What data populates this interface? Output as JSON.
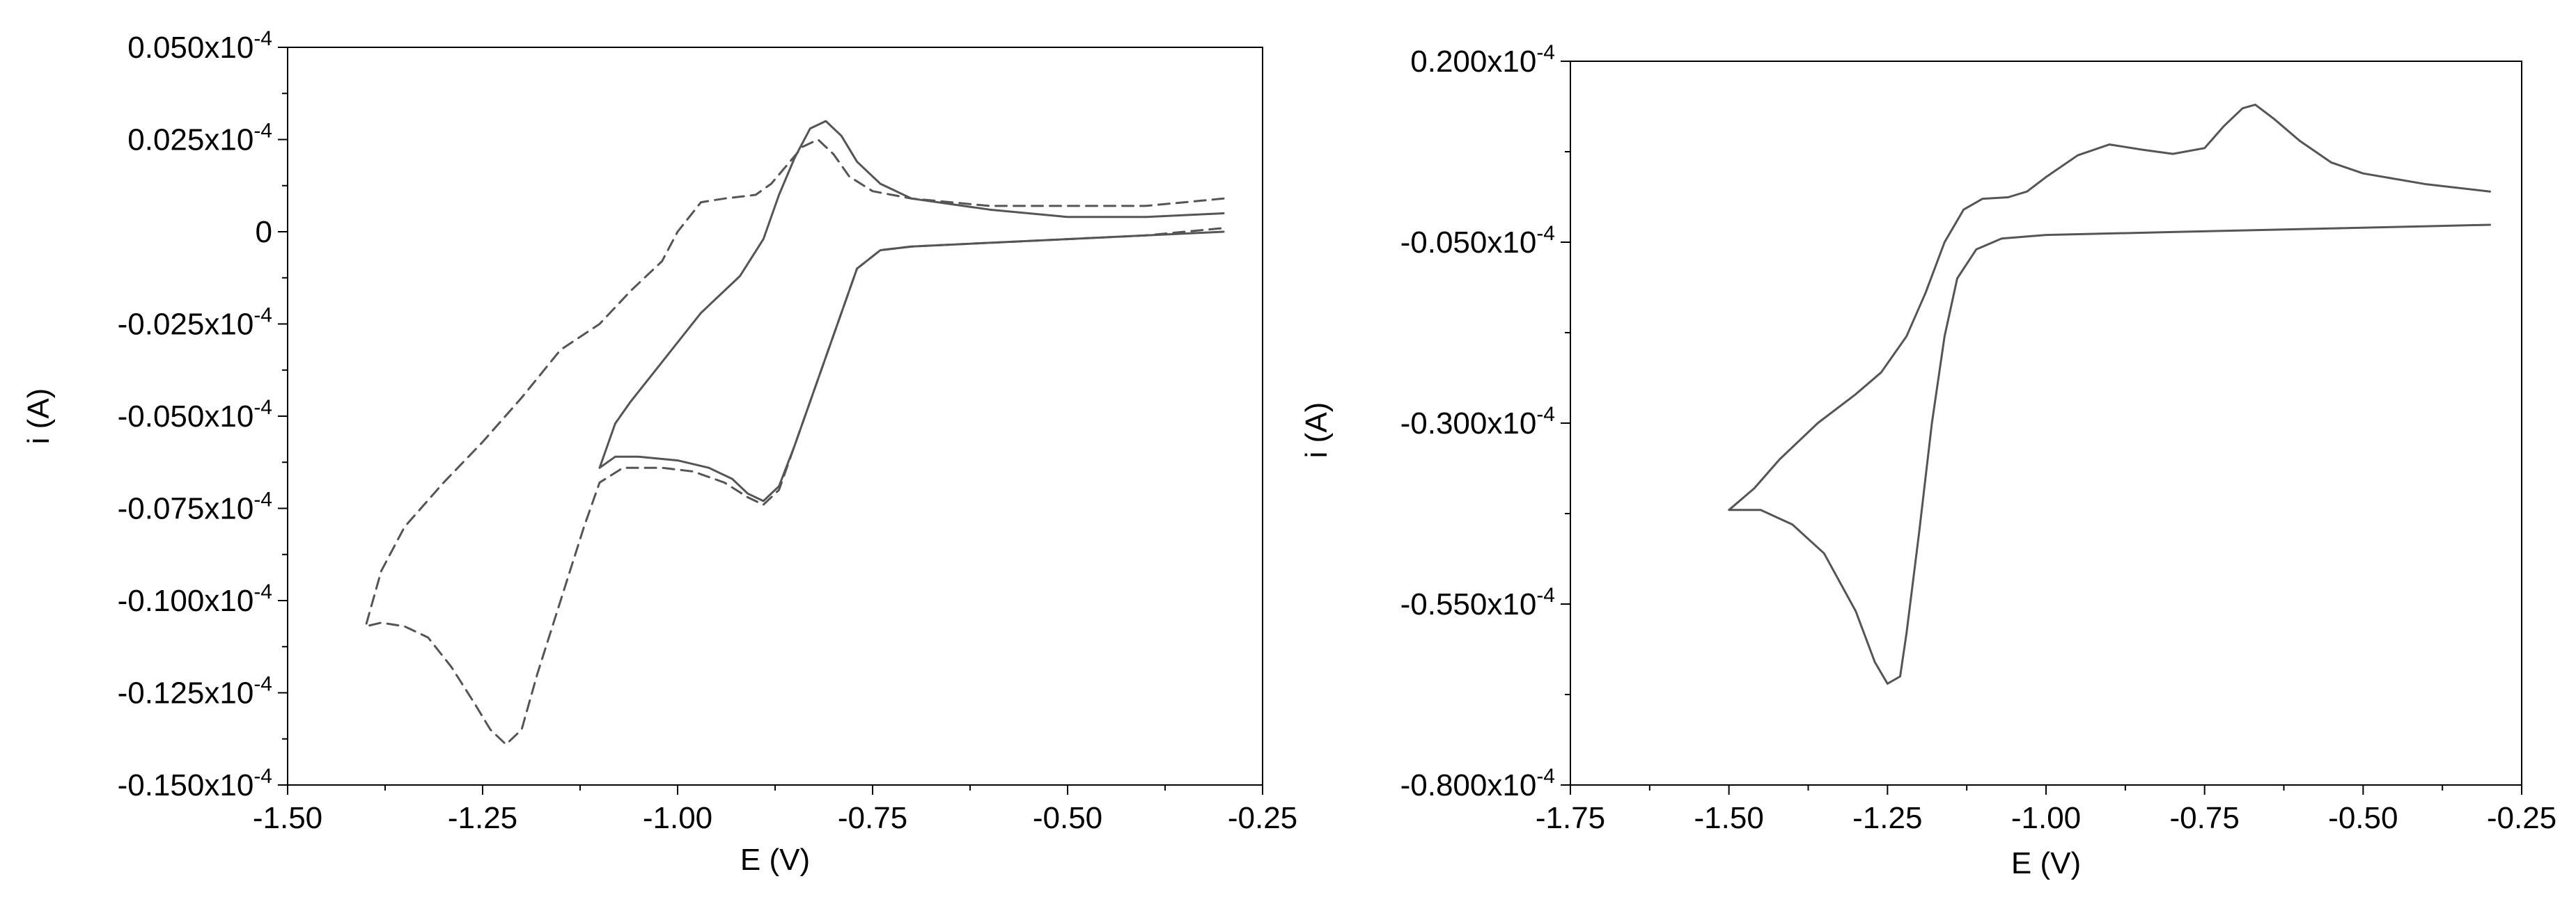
{
  "chart_data": [
    {
      "type": "line",
      "title": "",
      "xlabel": "E (V)",
      "ylabel": "i (A)",
      "xlim": [
        -1.5,
        -0.25
      ],
      "ylim": [
        -0.15,
        0.05
      ],
      "x_ticks": [
        -1.5,
        -1.25,
        -1.0,
        -0.75,
        -0.5,
        -0.25
      ],
      "x_tick_labels": [
        "-1.50",
        "-1.25",
        "-1.00",
        "-0.75",
        "-0.50",
        "-0.25"
      ],
      "y_ticks": [
        0.05,
        0.025,
        0,
        -0.025,
        -0.05,
        -0.075,
        -0.1,
        -0.125,
        -0.15
      ],
      "y_tick_labels": [
        "0.050x10",
        "0.025x10",
        "0",
        "-0.025x10",
        "-0.050x10",
        "-0.075x10",
        "-0.100x10",
        "-0.125x10",
        "-0.150x10"
      ],
      "y_tick_exponent": "-4",
      "grid": false,
      "legend": "none",
      "series": [
        {
          "style": "dashed",
          "color": "#777777",
          "points": [
            [
              -0.3,
              0.009
            ],
            [
              -0.4,
              0.007
            ],
            [
              -0.5,
              0.007
            ],
            [
              -0.6,
              0.007
            ],
            [
              -0.7,
              0.009
            ],
            [
              -0.75,
              0.011
            ],
            [
              -0.78,
              0.015
            ],
            [
              -0.8,
              0.021
            ],
            [
              -0.82,
              0.025
            ],
            [
              -0.84,
              0.023
            ],
            [
              -0.86,
              0.018
            ],
            [
              -0.88,
              0.013
            ],
            [
              -0.9,
              0.01
            ],
            [
              -0.94,
              0.009
            ],
            [
              -0.97,
              0.008
            ],
            [
              -1.0,
              0.0
            ],
            [
              -1.02,
              -0.008
            ],
            [
              -1.06,
              -0.016
            ],
            [
              -1.1,
              -0.025
            ],
            [
              -1.15,
              -0.032
            ],
            [
              -1.2,
              -0.045
            ],
            [
              -1.25,
              -0.057
            ],
            [
              -1.3,
              -0.068
            ],
            [
              -1.35,
              -0.08
            ],
            [
              -1.38,
              -0.092
            ],
            [
              -1.4,
              -0.107
            ],
            [
              -1.38,
              -0.106
            ],
            [
              -1.35,
              -0.107
            ],
            [
              -1.32,
              -0.11
            ],
            [
              -1.29,
              -0.118
            ],
            [
              -1.26,
              -0.128
            ],
            [
              -1.24,
              -0.135
            ],
            [
              -1.22,
              -0.139
            ],
            [
              -1.2,
              -0.135
            ],
            [
              -1.18,
              -0.12
            ],
            [
              -1.15,
              -0.1
            ],
            [
              -1.12,
              -0.08
            ],
            [
              -1.1,
              -0.068
            ],
            [
              -1.07,
              -0.064
            ],
            [
              -1.02,
              -0.064
            ],
            [
              -0.98,
              -0.065
            ],
            [
              -0.94,
              -0.068
            ],
            [
              -0.91,
              -0.072
            ],
            [
              -0.89,
              -0.074
            ],
            [
              -0.87,
              -0.07
            ],
            [
              -0.85,
              -0.058
            ],
            [
              -0.82,
              -0.04
            ],
            [
              -0.79,
              -0.022
            ],
            [
              -0.77,
              -0.01
            ],
            [
              -0.74,
              -0.005
            ],
            [
              -0.7,
              -0.004
            ],
            [
              -0.6,
              -0.003
            ],
            [
              -0.5,
              -0.002
            ],
            [
              -0.4,
              -0.001
            ],
            [
              -0.3,
              0.001
            ]
          ]
        },
        {
          "style": "solid",
          "color": "#555555",
          "points": [
            [
              -0.3,
              0.005
            ],
            [
              -0.4,
              0.004
            ],
            [
              -0.5,
              0.004
            ],
            [
              -0.6,
              0.006
            ],
            [
              -0.7,
              0.009
            ],
            [
              -0.74,
              0.013
            ],
            [
              -0.77,
              0.019
            ],
            [
              -0.79,
              0.026
            ],
            [
              -0.81,
              0.03
            ],
            [
              -0.83,
              0.028
            ],
            [
              -0.85,
              0.02
            ],
            [
              -0.87,
              0.01
            ],
            [
              -0.89,
              -0.002
            ],
            [
              -0.92,
              -0.012
            ],
            [
              -0.95,
              -0.018
            ],
            [
              -0.97,
              -0.022
            ],
            [
              -1.0,
              -0.03
            ],
            [
              -1.03,
              -0.038
            ],
            [
              -1.06,
              -0.046
            ],
            [
              -1.08,
              -0.052
            ],
            [
              -1.1,
              -0.064
            ],
            [
              -1.08,
              -0.061
            ],
            [
              -1.05,
              -0.061
            ],
            [
              -1.0,
              -0.062
            ],
            [
              -0.96,
              -0.064
            ],
            [
              -0.93,
              -0.067
            ],
            [
              -0.91,
              -0.071
            ],
            [
              -0.89,
              -0.073
            ],
            [
              -0.87,
              -0.069
            ],
            [
              -0.85,
              -0.058
            ],
            [
              -0.82,
              -0.04
            ],
            [
              -0.79,
              -0.022
            ],
            [
              -0.77,
              -0.01
            ],
            [
              -0.74,
              -0.005
            ],
            [
              -0.7,
              -0.004
            ],
            [
              -0.6,
              -0.003
            ],
            [
              -0.5,
              -0.002
            ],
            [
              -0.4,
              -0.001
            ],
            [
              -0.3,
              0.0
            ]
          ]
        }
      ]
    },
    {
      "type": "line",
      "title": "",
      "xlabel": "E (V)",
      "ylabel": "i (A)",
      "xlim": [
        -1.75,
        -0.25
      ],
      "ylim": [
        -0.8,
        0.2
      ],
      "x_ticks": [
        -1.75,
        -1.5,
        -1.25,
        -1.0,
        -0.75,
        -0.5,
        -0.25
      ],
      "x_tick_labels": [
        "-1.75",
        "-1.50",
        "-1.25",
        "-1.00",
        "-0.75",
        "-0.50",
        "-0.25"
      ],
      "y_ticks": [
        0.2,
        -0.05,
        -0.3,
        -0.55,
        -0.8
      ],
      "y_tick_labels": [
        "0.200x10",
        "-0.050x10",
        "-0.300x10",
        "-0.550x10",
        "-0.800x10"
      ],
      "y_tick_exponent": "-4",
      "grid": false,
      "legend": "none",
      "series": [
        {
          "style": "solid",
          "color": "#333333",
          "points": [
            [
              -0.3,
              0.02
            ],
            [
              -0.4,
              0.03
            ],
            [
              -0.5,
              0.045
            ],
            [
              -0.55,
              0.06
            ],
            [
              -0.6,
              0.09
            ],
            [
              -0.64,
              0.12
            ],
            [
              -0.67,
              0.14
            ],
            [
              -0.69,
              0.135
            ],
            [
              -0.72,
              0.11
            ],
            [
              -0.75,
              0.08
            ],
            [
              -0.8,
              0.072
            ],
            [
              -0.85,
              0.078
            ],
            [
              -0.9,
              0.085
            ],
            [
              -0.95,
              0.07
            ],
            [
              -1.0,
              0.04
            ],
            [
              -1.03,
              0.02
            ],
            [
              -1.06,
              0.012
            ],
            [
              -1.1,
              0.01
            ],
            [
              -1.13,
              -0.005
            ],
            [
              -1.16,
              -0.05
            ],
            [
              -1.19,
              -0.12
            ],
            [
              -1.22,
              -0.18
            ],
            [
              -1.26,
              -0.23
            ],
            [
              -1.3,
              -0.26
            ],
            [
              -1.36,
              -0.3
            ],
            [
              -1.42,
              -0.35
            ],
            [
              -1.46,
              -0.39
            ],
            [
              -1.5,
              -0.42
            ],
            [
              -1.45,
              -0.42
            ],
            [
              -1.4,
              -0.44
            ],
            [
              -1.35,
              -0.48
            ],
            [
              -1.3,
              -0.56
            ],
            [
              -1.27,
              -0.63
            ],
            [
              -1.25,
              -0.66
            ],
            [
              -1.23,
              -0.65
            ],
            [
              -1.22,
              -0.59
            ],
            [
              -1.2,
              -0.45
            ],
            [
              -1.18,
              -0.3
            ],
            [
              -1.16,
              -0.18
            ],
            [
              -1.14,
              -0.1
            ],
            [
              -1.11,
              -0.06
            ],
            [
              -1.07,
              -0.045
            ],
            [
              -1.0,
              -0.04
            ],
            [
              -0.8,
              -0.036
            ],
            [
              -0.6,
              -0.032
            ],
            [
              -0.4,
              -0.028
            ],
            [
              -0.3,
              -0.026
            ]
          ]
        }
      ]
    }
  ]
}
